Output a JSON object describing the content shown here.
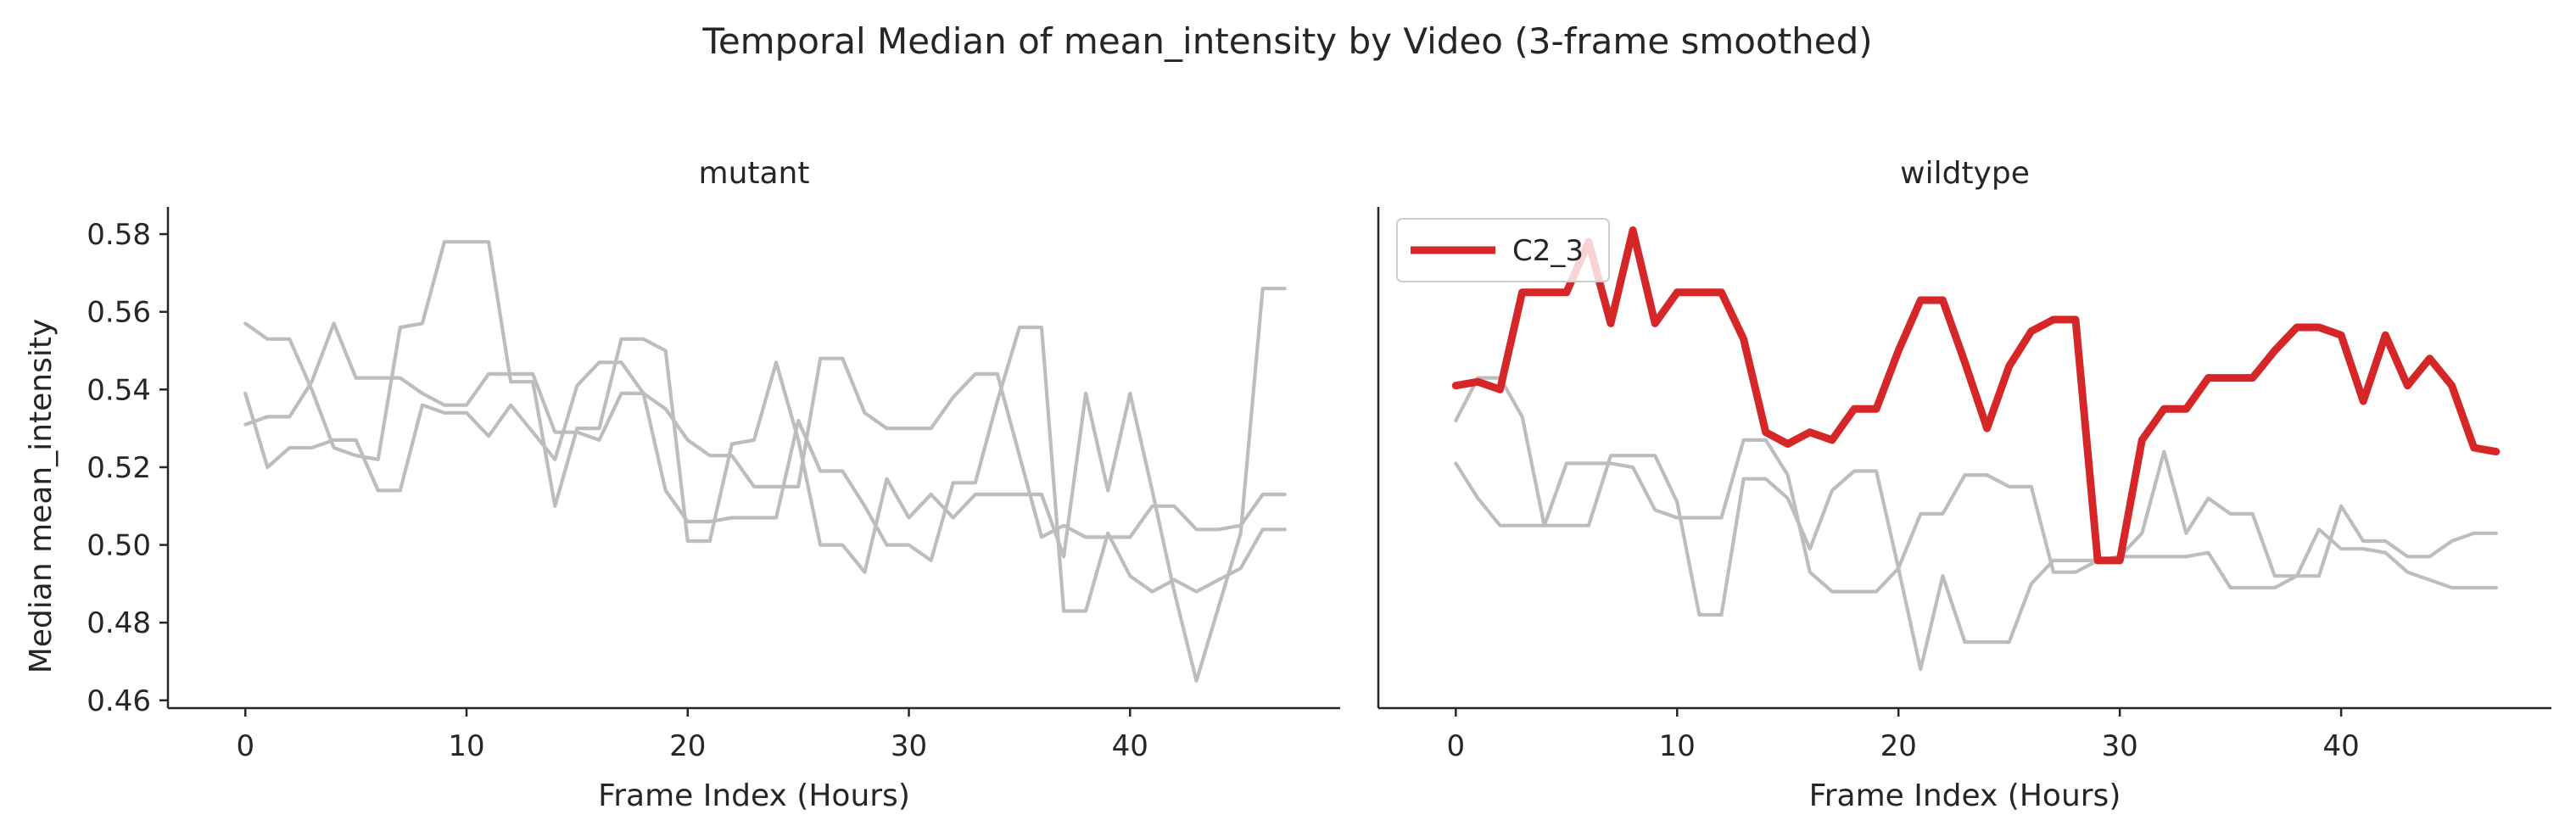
{
  "figure": {
    "title": "Temporal Median of mean_intensity by Video (3-frame smoothed)",
    "ylabel": "Median mean_intensity",
    "colors": {
      "background": "#ffffff",
      "axis": "#262626",
      "grey_series": "#bdbdbd",
      "highlight": "#d62728"
    }
  },
  "chart_data": [
    {
      "type": "line",
      "title": "mutant",
      "xlabel": "Frame Index (Hours)",
      "ylabel": "Median mean_intensity",
      "xlim": [
        -3.5,
        49.5
      ],
      "ylim": [
        0.458,
        0.587
      ],
      "xticks": [
        0,
        10,
        20,
        30,
        40
      ],
      "yticks": [
        0.46,
        0.48,
        0.5,
        0.52,
        0.54,
        0.56,
        0.58
      ],
      "grid": false,
      "x": [
        0,
        1,
        2,
        3,
        4,
        5,
        6,
        7,
        8,
        9,
        10,
        11,
        12,
        13,
        14,
        15,
        16,
        17,
        18,
        19,
        20,
        21,
        22,
        23,
        24,
        25,
        26,
        27,
        28,
        29,
        30,
        31,
        32,
        33,
        34,
        35,
        36,
        37,
        38,
        39,
        40,
        41,
        42,
        43,
        44,
        45,
        46,
        47
      ],
      "series": [
        {
          "highlight": false,
          "values": [
            0.557,
            0.553,
            0.553,
            0.54,
            0.525,
            0.523,
            0.522,
            0.556,
            0.557,
            0.578,
            0.578,
            0.578,
            0.542,
            0.542,
            0.51,
            0.53,
            0.53,
            0.553,
            0.553,
            0.55,
            0.501,
            0.501,
            0.526,
            0.527,
            0.547,
            0.527,
            0.5,
            0.5,
            0.493,
            0.517,
            0.507,
            0.513,
            0.507,
            0.513,
            0.513,
            0.513,
            0.513,
            0.497,
            0.539,
            0.514,
            0.539,
            0.514,
            0.488,
            0.465,
            0.484,
            0.503,
            0.566,
            0.566
          ]
        },
        {
          "highlight": false,
          "values": [
            0.539,
            0.52,
            0.525,
            0.525,
            0.527,
            0.527,
            0.514,
            0.514,
            0.536,
            0.534,
            0.534,
            0.528,
            0.536,
            0.529,
            0.522,
            0.541,
            0.547,
            0.547,
            0.539,
            0.514,
            0.506,
            0.506,
            0.507,
            0.507,
            0.507,
            0.532,
            0.519,
            0.519,
            0.51,
            0.5,
            0.5,
            0.496,
            0.516,
            0.516,
            0.537,
            0.556,
            0.556,
            0.483,
            0.483,
            0.503,
            0.492,
            0.488,
            0.491,
            0.488,
            0.491,
            0.494,
            0.504,
            0.504
          ]
        },
        {
          "highlight": false,
          "values": [
            0.531,
            0.533,
            0.533,
            0.542,
            0.557,
            0.543,
            0.543,
            0.543,
            0.539,
            0.536,
            0.536,
            0.544,
            0.544,
            0.544,
            0.529,
            0.529,
            0.527,
            0.539,
            0.539,
            0.535,
            0.527,
            0.523,
            0.523,
            0.515,
            0.515,
            0.515,
            0.548,
            0.548,
            0.534,
            0.53,
            0.53,
            0.53,
            0.538,
            0.544,
            0.544,
            0.523,
            0.502,
            0.505,
            0.502,
            0.502,
            0.502,
            0.51,
            0.51,
            0.504,
            0.504,
            0.505,
            0.513,
            0.513
          ]
        }
      ]
    },
    {
      "type": "line",
      "title": "wildtype",
      "xlabel": "Frame Index (Hours)",
      "xlim": [
        -3.5,
        49.5
      ],
      "ylim": [
        0.458,
        0.587
      ],
      "xticks": [
        0,
        10,
        20,
        30,
        40
      ],
      "grid": false,
      "legend": {
        "position": "top-left",
        "entries": [
          "C2_3"
        ]
      },
      "x": [
        0,
        1,
        2,
        3,
        4,
        5,
        6,
        7,
        8,
        9,
        10,
        11,
        12,
        13,
        14,
        15,
        16,
        17,
        18,
        19,
        20,
        21,
        22,
        23,
        24,
        25,
        26,
        27,
        28,
        29,
        30,
        31,
        32,
        33,
        34,
        35,
        36,
        37,
        38,
        39,
        40,
        41,
        42,
        43,
        44,
        45,
        46,
        47
      ],
      "series": [
        {
          "name": "C2_3",
          "highlight": true,
          "values": [
            0.541,
            0.542,
            0.54,
            0.565,
            0.565,
            0.565,
            0.578,
            0.557,
            0.581,
            0.557,
            0.565,
            0.565,
            0.565,
            0.553,
            0.529,
            0.526,
            0.529,
            0.527,
            0.535,
            0.535,
            0.55,
            0.563,
            0.563,
            0.547,
            0.53,
            0.546,
            0.555,
            0.558,
            0.558,
            0.496,
            0.496,
            0.527,
            0.535,
            0.535,
            0.543,
            0.543,
            0.543,
            0.55,
            0.556,
            0.556,
            0.554,
            0.537,
            0.554,
            0.541,
            0.548,
            0.541,
            0.525,
            0.524
          ]
        },
        {
          "highlight": false,
          "values": [
            0.532,
            0.543,
            0.543,
            0.533,
            0.505,
            0.521,
            0.521,
            0.521,
            0.52,
            0.509,
            0.507,
            0.507,
            0.507,
            0.527,
            0.527,
            0.518,
            0.493,
            0.488,
            0.488,
            0.488,
            0.494,
            0.508,
            0.508,
            0.518,
            0.518,
            0.515,
            0.515,
            0.493,
            0.493,
            0.496,
            0.497,
            0.497,
            0.497,
            0.497,
            0.498,
            0.489,
            0.489,
            0.489,
            0.492,
            0.492,
            0.51,
            0.501,
            0.501,
            0.497,
            0.497,
            0.501,
            0.503,
            0.503
          ]
        },
        {
          "highlight": false,
          "values": [
            0.521,
            0.512,
            0.505,
            0.505,
            0.505,
            0.505,
            0.505,
            0.523,
            0.523,
            0.523,
            0.511,
            0.482,
            0.482,
            0.517,
            0.517,
            0.512,
            0.499,
            0.514,
            0.519,
            0.519,
            0.494,
            0.468,
            0.492,
            0.475,
            0.475,
            0.475,
            0.49,
            0.496,
            0.496,
            0.496,
            0.497,
            0.503,
            0.524,
            0.503,
            0.512,
            0.508,
            0.508,
            0.492,
            0.492,
            0.504,
            0.499,
            0.499,
            0.498,
            0.493,
            0.491,
            0.489,
            0.489,
            0.489
          ]
        }
      ]
    }
  ]
}
